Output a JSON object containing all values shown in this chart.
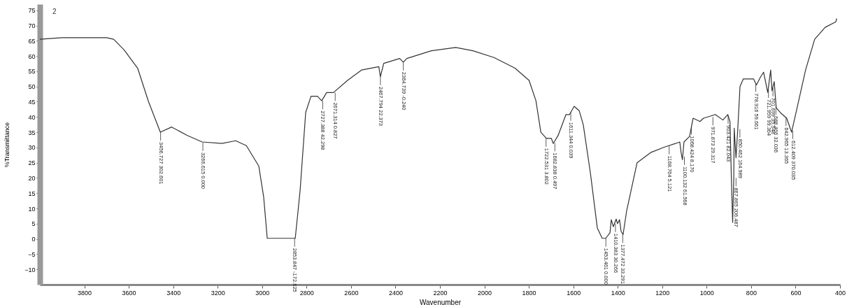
{
  "chart_data": {
    "type": "line",
    "xlabel": "Wavenumber",
    "ylabel": "%Transmittance",
    "xlim": [
      4000,
      400
    ],
    "ylim": [
      -15,
      77
    ],
    "xticks": [
      3800,
      3600,
      3400,
      3200,
      3000,
      2800,
      2600,
      2400,
      2200,
      2000,
      1800,
      1600,
      1400,
      1200,
      1000,
      800,
      600,
      400
    ],
    "yticks": [
      -10,
      -5,
      0,
      5,
      10,
      15,
      20,
      25,
      30,
      35,
      40,
      45,
      50,
      55,
      60,
      65,
      70,
      75
    ],
    "grid": false,
    "series": [
      {
        "color": "#333333",
        "x": [
          4000,
          3900,
          3800,
          3700,
          3668,
          3621,
          3560,
          3511,
          3458,
          3407,
          3338,
          3270,
          3181,
          3119,
          3071,
          3015,
          2993,
          2977,
          2851,
          2840,
          2829,
          2804,
          2780,
          2751,
          2732,
          2710,
          2679,
          2616,
          2553,
          2475,
          2468,
          2453,
          2381,
          2365,
          2349,
          2239,
          2129,
          2051,
          1957,
          1862,
          1799,
          1768,
          1746,
          1721,
          1699,
          1690,
          1668,
          1633,
          1617,
          1596,
          1573,
          1555,
          1523,
          1492,
          1470,
          1454,
          1435,
          1429,
          1420,
          1407,
          1401,
          1392,
          1385,
          1376,
          1360,
          1313,
          1250,
          1187,
          1140,
          1121,
          1115,
          1109,
          1102,
          1077,
          1061,
          1030,
          1014,
          983,
          961,
          927,
          905,
          895,
          889,
          883,
          878,
          876,
          868,
          860,
          850,
          835,
          814,
          789,
          776,
          757,
          744,
          725,
          712,
          706,
          696,
          687,
          665,
          640,
          618,
          593,
          555,
          514,
          467,
          419,
          415
        ],
        "values": [
          65.5,
          66,
          66,
          66,
          65.5,
          62,
          56,
          45,
          35,
          36.7,
          34,
          31.8,
          31.3,
          32.2,
          30.6,
          23.9,
          13.7,
          0.2,
          0.2,
          8,
          16,
          41.5,
          46.8,
          46.8,
          45.3,
          48,
          48,
          52,
          55.4,
          56.5,
          53.2,
          57.6,
          59.2,
          58,
          59.2,
          61.7,
          62.8,
          61.7,
          59.5,
          56,
          52,
          45.3,
          35,
          33,
          33,
          31.3,
          34,
          40.8,
          40.8,
          43.5,
          42,
          37.4,
          21.6,
          3.6,
          0.2,
          0.2,
          2,
          6.3,
          4,
          6.5,
          5,
          6.3,
          2.5,
          1.4,
          9.2,
          25,
          28.4,
          30.2,
          31.3,
          31.8,
          28.4,
          26,
          31.8,
          33.6,
          39.6,
          38.5,
          39.6,
          40.3,
          40.8,
          39,
          40.8,
          38.5,
          20.5,
          5.4,
          20,
          36.3,
          26.6,
          36,
          50,
          52.5,
          52.5,
          52.5,
          50.5,
          53.2,
          54.7,
          48,
          55.4,
          48.6,
          51.6,
          43,
          41.2,
          39.6,
          35,
          43,
          55.4,
          65.5,
          69.4,
          71.2,
          72.3
        ]
      }
    ],
    "annotations": [
      "2",
      {
        "text": "3456.727 302.601",
        "x": 3456.727,
        "y": 35
      },
      {
        "text": "3266.615 0.000",
        "x": 3266.615,
        "y": 31.6
      },
      {
        "text": "2853.847 -172.625",
        "x": 2853.847,
        "y": 0.2
      },
      {
        "text": "2727.388 42.298",
        "x": 2727.388,
        "y": 45.3
      },
      {
        "text": "2671.314 0.827",
        "x": 2671.314,
        "y": 48
      },
      {
        "text": "2467.794 22.373",
        "x": 2467.794,
        "y": 53.2
      },
      {
        "text": "2364.739 -0.240",
        "x": 2364.739,
        "y": 58
      },
      {
        "text": "1722.531 3.802",
        "x": 1722.531,
        "y": 33
      },
      {
        "text": "1682.838 0.497",
        "x": 1682.838,
        "y": 31.5
      },
      {
        "text": "1611.344 0.039",
        "x": 1611.344,
        "y": 41.5
      },
      {
        "text": "1453.461 0.000",
        "x": 1453.461,
        "y": 0.2
      },
      {
        "text": "1410.383 30.266",
        "x": 1410.383,
        "y": 5
      },
      {
        "text": "1377.472 33.291",
        "x": 1377.472,
        "y": 1.4
      },
      {
        "text": "1168.764 5.121",
        "x": 1168.764,
        "y": 30.5
      },
      {
        "text": "1100.132 61.568",
        "x": 1100.132,
        "y": 27
      },
      {
        "text": "1068.424 8.170",
        "x": 1068.424,
        "y": 37
      },
      {
        "text": "971.873 29.317",
        "x": 971.873,
        "y": 40
      },
      {
        "text": "903.421 82.043",
        "x": 903.421,
        "y": 40.5
      },
      {
        "text": "867.865 206.487",
        "x": 867.865,
        "y": 20
      },
      {
        "text": "850.462 164.989",
        "x": 850.462,
        "y": 36
      },
      {
        "text": "778.916 59.661",
        "x": 778.916,
        "y": 51
      },
      {
        "text": "721.959 99.364",
        "x": 721.959,
        "y": 49
      },
      {
        "text": "701.699 35.548",
        "x": 701.699,
        "y": 49.5
      },
      {
        "text": "688.466 32.036",
        "x": 688.466,
        "y": 43.5
      },
      {
        "text": "642.965 13.365",
        "x": 642.965,
        "y": 39.8
      },
      {
        "text": "612.409 370.035",
        "x": 612.409,
        "y": 35.5
      }
    ]
  }
}
